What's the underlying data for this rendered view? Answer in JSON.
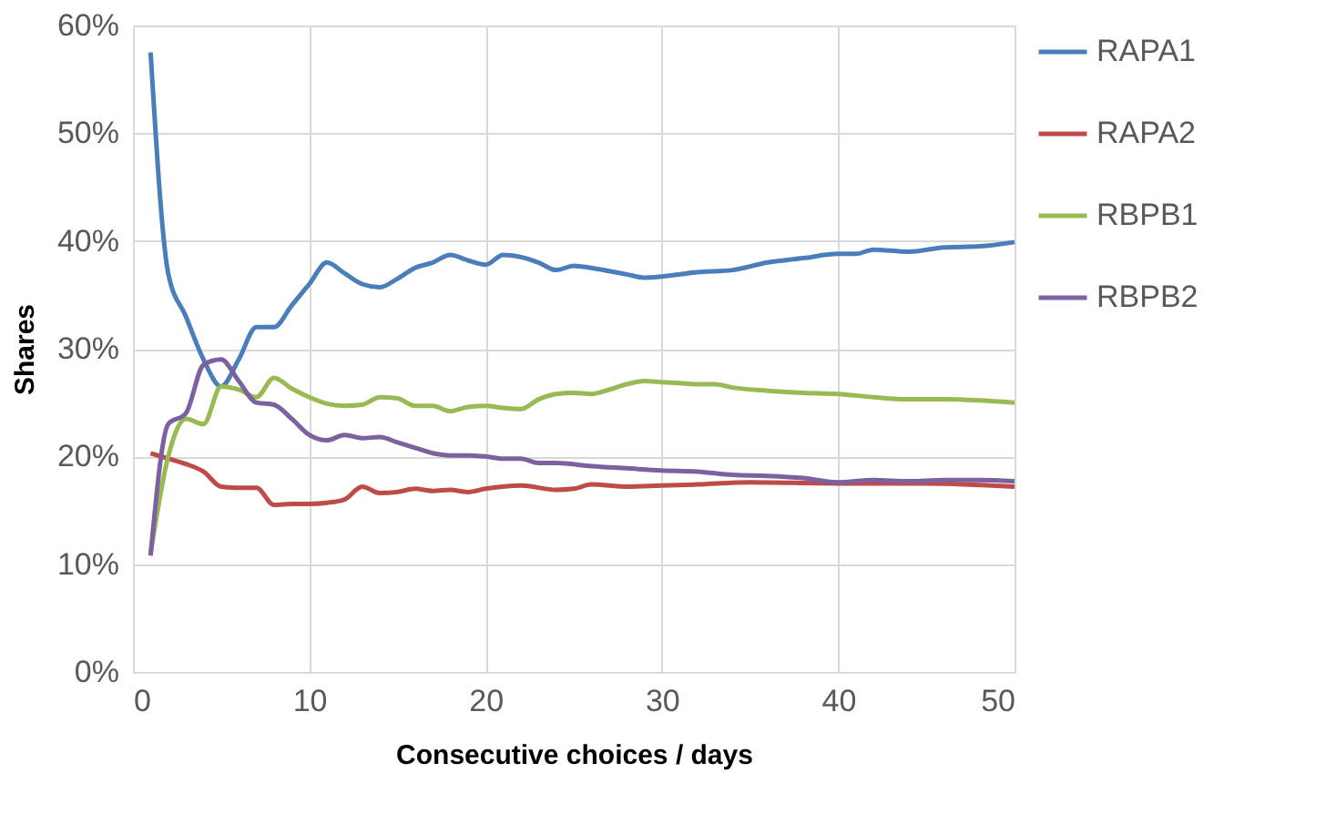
{
  "chart_data": {
    "type": "line",
    "xlabel": "Consecutive choices / days",
    "ylabel": "Shares",
    "xlim": [
      0,
      50
    ],
    "xticks": [
      0,
      10,
      20,
      30,
      40,
      50
    ],
    "ylim": [
      0,
      60
    ],
    "yticks": [
      {
        "value": 0,
        "label": "0%"
      },
      {
        "value": 10,
        "label": "10%"
      },
      {
        "value": 20,
        "label": "20%"
      },
      {
        "value": 30,
        "label": "30%"
      },
      {
        "value": 40,
        "label": "40%"
      },
      {
        "value": 50,
        "label": "50%"
      },
      {
        "value": 60,
        "label": "60%"
      }
    ],
    "grid": true,
    "legend": "right",
    "marker": "none",
    "line_style": "solid",
    "series": [
      {
        "name": "RAPA1",
        "color": "#4a7ebb",
        "x": [
          1,
          2,
          3,
          4,
          5,
          6,
          7,
          8,
          9,
          10,
          11,
          12,
          13,
          14,
          15,
          16,
          17,
          18,
          19,
          20,
          21,
          22,
          23,
          24,
          25,
          26,
          27,
          28,
          29,
          30,
          32,
          34,
          36,
          38,
          40,
          41,
          42,
          44,
          46,
          48,
          50
        ],
        "values": [
          57.5,
          37,
          33,
          29,
          26.5,
          29,
          32,
          32,
          34,
          36,
          38,
          37,
          36,
          35.7,
          36.5,
          37.5,
          38,
          38.7,
          38.2,
          37.8,
          38.7,
          38.5,
          38,
          37.3,
          37.7,
          37.5,
          37.2,
          36.9,
          36.6,
          36.7,
          37.1,
          37.3,
          38,
          38.4,
          38.8,
          38.8,
          39.2,
          39,
          39.4,
          39.5,
          39.9
        ]
      },
      {
        "name": "RAPA2",
        "color": "#be4b48",
        "x": [
          1,
          2,
          3,
          4,
          5,
          6,
          7,
          8,
          9,
          10,
          11,
          12,
          13,
          14,
          15,
          16,
          17,
          18,
          19,
          20,
          22,
          24,
          25,
          26,
          28,
          30,
          32,
          35,
          40,
          45,
          50
        ],
        "values": [
          20.3,
          19.8,
          19.3,
          18.6,
          17.2,
          17.1,
          17.1,
          15.5,
          15.6,
          15.6,
          15.7,
          16,
          17.2,
          16.6,
          16.7,
          17,
          16.8,
          16.9,
          16.7,
          17,
          17.3,
          16.9,
          17,
          17.4,
          17.2,
          17.3,
          17.4,
          17.6,
          17.5,
          17.5,
          17.2
        ]
      },
      {
        "name": "RBPB1",
        "color": "#98b954",
        "x": [
          1,
          2,
          3,
          4,
          5,
          6,
          7,
          8,
          9,
          10,
          11,
          12,
          13,
          14,
          15,
          16,
          17,
          18,
          19,
          20,
          21,
          22,
          23,
          24,
          25,
          26,
          27,
          28,
          29,
          30,
          31,
          32,
          33,
          34,
          36,
          38,
          40,
          42,
          44,
          46,
          48,
          50
        ],
        "values": [
          11,
          20,
          23.5,
          23,
          26.5,
          26.2,
          25.5,
          27.3,
          26.3,
          25.5,
          24.9,
          24.7,
          24.8,
          25.5,
          25.4,
          24.7,
          24.7,
          24.2,
          24.6,
          24.7,
          24.5,
          24.4,
          25.3,
          25.8,
          25.9,
          25.8,
          26.2,
          26.7,
          27,
          26.9,
          26.8,
          26.7,
          26.7,
          26.4,
          26.1,
          25.9,
          25.8,
          25.5,
          25.3,
          25.3,
          25.2,
          25.0
        ]
      },
      {
        "name": "RBPB2",
        "color": "#7d60a0",
        "x": [
          1,
          2,
          3,
          4,
          5,
          6,
          7,
          8,
          9,
          10,
          11,
          12,
          13,
          14,
          15,
          16,
          17,
          18,
          19,
          20,
          21,
          22,
          23,
          24,
          26,
          28,
          30,
          32,
          34,
          36,
          38,
          40,
          42,
          44,
          46,
          48,
          50
        ],
        "values": [
          10.8,
          23,
          24,
          28.5,
          29,
          27,
          25,
          24.8,
          23.5,
          22,
          21.5,
          22,
          21.7,
          21.8,
          21.3,
          20.8,
          20.3,
          20.1,
          20.1,
          20,
          19.8,
          19.8,
          19.4,
          19.4,
          19.1,
          18.9,
          18.7,
          18.6,
          18.3,
          18.2,
          18,
          17.6,
          17.8,
          17.7,
          17.8,
          17.8,
          17.7
        ]
      }
    ]
  }
}
